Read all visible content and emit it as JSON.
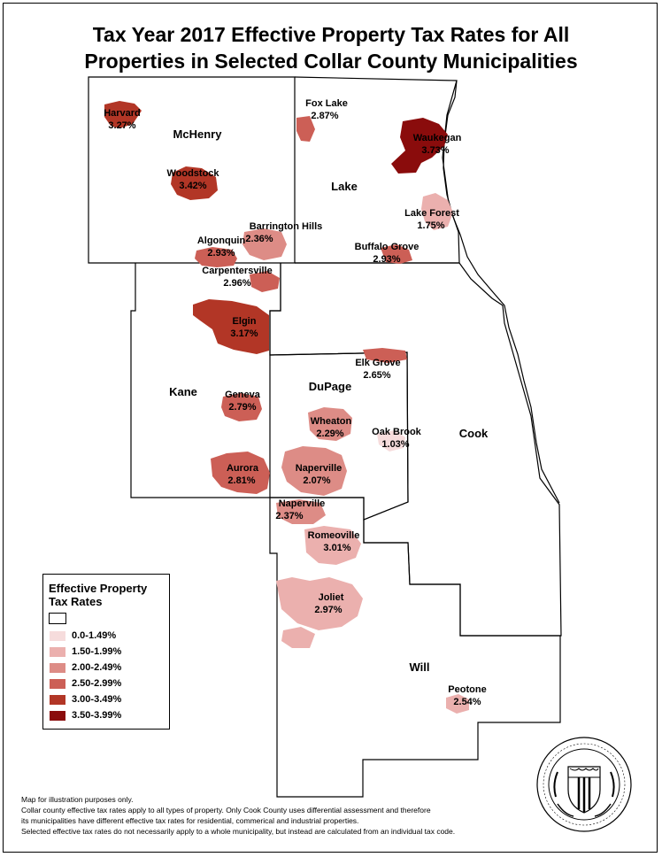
{
  "title_line1": "Tax Year 2017 Effective Property Tax Rates for All",
  "title_line2": "Properties in Selected Collar County Municipalities",
  "counties": {
    "mchenry": "McHenry",
    "lake": "Lake",
    "kane": "Kane",
    "dupage": "DuPage",
    "cook": "Cook",
    "will": "Will"
  },
  "municipalities": {
    "harvard": {
      "name": "Harvard",
      "rate": "3.27%"
    },
    "woodstock": {
      "name": "Woodstock",
      "rate": "3.42%"
    },
    "algonquin": {
      "name": "Algonquin",
      "rate": "2.93%"
    },
    "barrington": {
      "name": "Barrington Hills",
      "rate": "2.36%"
    },
    "foxlake": {
      "name": "Fox Lake",
      "rate": "2.87%"
    },
    "waukegan": {
      "name": "Waukegan",
      "rate": "3.73%"
    },
    "lakeforest": {
      "name": "Lake Forest",
      "rate": "1.75%"
    },
    "buffalogrove": {
      "name": "Buffalo Grove",
      "rate": "2.93%"
    },
    "carpenters": {
      "name": "Carpentersville",
      "rate": "2.96%"
    },
    "elgin": {
      "name": "Elgin",
      "rate": "3.17%"
    },
    "geneva": {
      "name": "Geneva",
      "rate": "2.79%"
    },
    "aurora": {
      "name": "Aurora",
      "rate": "2.81%"
    },
    "elkgrove": {
      "name": "Elk Grove",
      "rate": "2.65%"
    },
    "wheaton": {
      "name": "Wheaton",
      "rate": "2.29%"
    },
    "oakbrook": {
      "name": "Oak Brook",
      "rate": "1.03%"
    },
    "naperville_d": {
      "name": "Naperville",
      "rate": "2.07%"
    },
    "naperville_w": {
      "name": "Naperville",
      "rate": "2.37%"
    },
    "romeoville": {
      "name": "Romeoville",
      "rate": "3.01%"
    },
    "joliet": {
      "name": "Joliet",
      "rate": "2.97%"
    },
    "peotone": {
      "name": "Peotone",
      "rate": "2.54%"
    }
  },
  "legend": {
    "title_line1": "Effective Property",
    "title_line2": "Tax Rates",
    "items": [
      {
        "label": "0.0-1.49%",
        "color": "#f6dcdc"
      },
      {
        "label": "1.50-1.99%",
        "color": "#ebb0ae"
      },
      {
        "label": "2.00-2.49%",
        "color": "#dd8c86"
      },
      {
        "label": "2.50-2.99%",
        "color": "#cc5f56"
      },
      {
        "label": "3.00-3.49%",
        "color": "#b23626"
      },
      {
        "label": "3.50-3.99%",
        "color": "#8a0c0c"
      }
    ]
  },
  "notes": [
    "Map for illustration purposes only.",
    "Collar county effective tax rates apply to all types of property. Only Cook County uses differential assessment and therefore",
    "its municipalities have different effective tax rates for residential, commerical and industrial properties.",
    "Selected effective tax rates do not necessarily apply to a whole municipality, but instead are calculated from an individual tax code."
  ],
  "seal_icon": "civic-federation-seal-icon"
}
